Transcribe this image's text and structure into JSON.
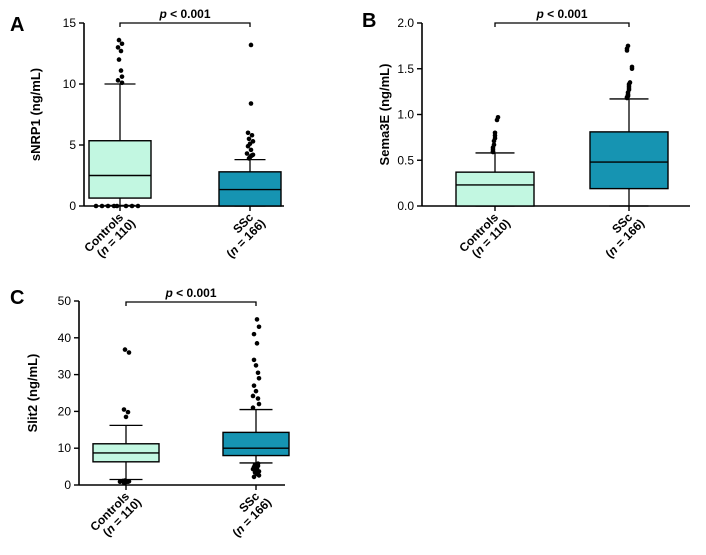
{
  "chart_data": [
    {
      "panel": "A",
      "type": "box",
      "ylabel": "sNRP1 (ng/mL)",
      "ylim": [
        0,
        15
      ],
      "yticks": [
        0,
        5,
        10,
        15
      ],
      "significance": {
        "p_italic": "p",
        "rest": " < 0.001"
      },
      "groups": [
        {
          "name": "Controls",
          "n_label": "(n = 110)",
          "n_italic": "n",
          "n_rest": " = 110",
          "color": "#c2f7e1",
          "whisker_low": 0.05,
          "q1": 0.65,
          "median": 2.5,
          "q3": 5.35,
          "whisker_high": 10.0,
          "outliers": [
            10.1,
            10.3,
            10.6,
            11.1,
            12.0,
            12.7,
            13.0,
            13.3,
            13.6,
            0.0,
            0.0,
            0.0,
            0.0,
            0.0,
            0.0,
            0.0,
            0.0
          ]
        },
        {
          "name": "SSc",
          "n_label": "(n = 166)",
          "n_italic": "n",
          "n_rest": " = 166",
          "color": "#1694b2",
          "whisker_low": 0.0,
          "q1": 0.0,
          "median": 1.35,
          "q3": 2.8,
          "whisker_high": 3.8,
          "outliers": [
            3.9,
            4.0,
            4.1,
            4.15,
            4.2,
            4.3,
            4.6,
            4.9,
            5.1,
            5.3,
            5.5,
            5.8,
            6.0,
            8.4,
            13.2
          ]
        }
      ]
    },
    {
      "panel": "B",
      "type": "box",
      "ylabel": "Sema3E (ng/mL)",
      "ylim": [
        0,
        2.0
      ],
      "yticks": [
        0.0,
        0.5,
        1.0,
        1.5,
        2.0
      ],
      "significance": {
        "p_italic": "p",
        "rest": " < 0.001"
      },
      "groups": [
        {
          "name": "Controls",
          "n_label": "(n = 110)",
          "n_italic": "n",
          "n_rest": " = 110",
          "color": "#c2f7e1",
          "whisker_low": 0.0,
          "q1": 0.0,
          "median": 0.23,
          "q3": 0.37,
          "whisker_high": 0.58,
          "outliers": [
            0.59,
            0.6,
            0.62,
            0.64,
            0.67,
            0.71,
            0.74,
            0.77,
            0.8,
            0.94,
            0.97
          ]
        },
        {
          "name": "SSc",
          "n_label": "(n = 166)",
          "n_italic": "n",
          "n_rest": " = 166",
          "color": "#1694b2",
          "whisker_low": 0.0,
          "q1": 0.19,
          "median": 0.48,
          "q3": 0.81,
          "whisker_high": 1.17,
          "outliers": [
            1.18,
            1.19,
            1.2,
            1.21,
            1.22,
            1.24,
            1.27,
            1.29,
            1.31,
            1.33,
            1.35,
            1.5,
            1.52,
            1.7,
            1.72,
            1.75
          ]
        }
      ]
    },
    {
      "panel": "C",
      "type": "box",
      "ylabel": "Slit2 (ng/mL)",
      "ylim": [
        0,
        50
      ],
      "yticks": [
        0,
        10,
        20,
        30,
        40,
        50
      ],
      "significance": {
        "p_italic": "p",
        "rest": " < 0.001"
      },
      "groups": [
        {
          "name": "Controls",
          "n_label": "(n = 110)",
          "n_italic": "n",
          "n_rest": " = 110",
          "color": "#c2f7e1",
          "whisker_low": 1.5,
          "q1": 6.3,
          "median": 8.7,
          "q3": 11.2,
          "whisker_high": 16.2,
          "outliers": [
            18.5,
            19.8,
            20.5,
            36.0,
            36.8,
            1.2,
            1.0,
            0.9,
            0.8,
            0.7,
            0.6,
            1.1,
            0.9
          ]
        },
        {
          "name": "SSc",
          "n_label": "(n = 166)",
          "n_italic": "n",
          "n_rest": " = 166",
          "color": "#1694b2",
          "whisker_low": 6.0,
          "q1": 8.0,
          "median": 10.0,
          "q3": 14.3,
          "whisker_high": 20.5,
          "outliers": [
            21.0,
            22.0,
            23.5,
            24.2,
            25.5,
            27.0,
            29.0,
            30.5,
            32.5,
            34.0,
            38.5,
            41.0,
            43.0,
            45.0,
            5.8,
            5.5,
            5.2,
            4.9,
            4.6,
            4.3,
            4.0,
            3.7,
            3.4,
            3.0,
            2.6,
            2.2
          ]
        }
      ]
    }
  ]
}
